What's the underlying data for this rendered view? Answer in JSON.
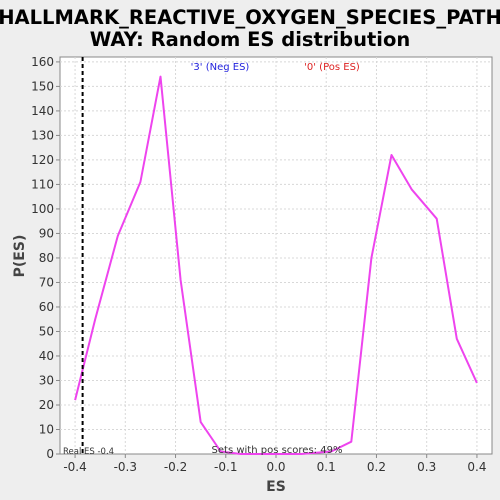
{
  "chart_data": {
    "type": "line",
    "title_line1": "HALLMARK_REACTIVE_OXYGEN_SPECIES_PATH",
    "title_line2": "WAY: Random ES distribution",
    "xlabel": "ES",
    "ylabel": "P(ES)",
    "xlim": [
      -0.43,
      0.43
    ],
    "ylim": [
      0,
      162
    ],
    "x_ticks": [
      -0.4,
      -0.3,
      -0.2,
      -0.1,
      0.0,
      0.1,
      0.2,
      0.3,
      0.4
    ],
    "x_tick_labels": [
      "-0.4",
      "-0.3",
      "-0.2",
      "-0.1",
      "0.0",
      "0.1",
      "0.2",
      "0.3",
      "0.4"
    ],
    "y_ticks": [
      0,
      10,
      20,
      30,
      40,
      50,
      60,
      70,
      80,
      90,
      100,
      110,
      120,
      130,
      140,
      150,
      160
    ],
    "grid": true,
    "series": [
      {
        "color": "#ee44ee",
        "x": [
          -0.4,
          -0.36,
          -0.315,
          -0.27,
          -0.23,
          -0.19,
          -0.15,
          -0.11,
          -0.07,
          -0.03,
          0.01,
          0.05,
          0.11,
          0.15,
          0.19,
          0.23,
          0.27,
          0.32,
          0.36,
          0.4
        ],
        "y": [
          22,
          55,
          89,
          111,
          154,
          71,
          13,
          1,
          0,
          0,
          0,
          0,
          1,
          5,
          80,
          122,
          108,
          96,
          47,
          29
        ]
      }
    ],
    "real_es": -0.385,
    "real_es_color": "#000000",
    "annotations": {
      "neg_label": "'3' (Neg ES)",
      "neg_color": "#2222dd",
      "pos_label": "'0' (Pos ES)",
      "pos_color": "#dd2222",
      "real_es_label": "Real ES -0.4",
      "pos_scores_label": "Sets with pos scores: 49%"
    }
  }
}
